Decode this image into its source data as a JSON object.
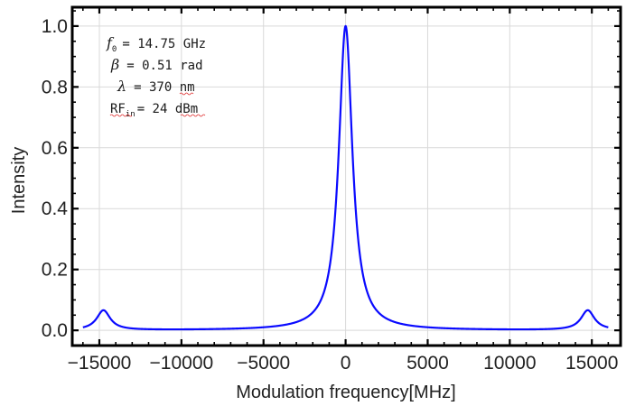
{
  "chart_data": {
    "type": "line",
    "title": "",
    "xlabel": "Modulation frequency[MHz]",
    "ylabel": "Intensity",
    "xlim": [
      -16650,
      16750
    ],
    "ylim": [
      -0.05,
      1.062
    ],
    "grid": true,
    "x_ticks": [
      -15000,
      -10000,
      -5000,
      0,
      5000,
      10000,
      15000
    ],
    "x_tick_labels": [
      "−15000",
      "−10000",
      "−5000",
      "0",
      "5000",
      "10000",
      "15000"
    ],
    "y_ticks": [
      0.0,
      0.2,
      0.4,
      0.6,
      0.8,
      1.0
    ],
    "y_tick_labels": [
      "0.0",
      "0.2",
      "0.4",
      "0.6",
      "0.8",
      "1.0"
    ],
    "line_color": "#0a0aff",
    "series": [
      {
        "name": "Intensity",
        "x": [
          -16000,
          -15500,
          -15000,
          -14750,
          -14500,
          -14000,
          -13000,
          -12000,
          -10000,
          -8000,
          -6000,
          -5000,
          -4000,
          -3000,
          -2000,
          -1500,
          -1000,
          -750,
          -500,
          -300,
          -150,
          0,
          150,
          300,
          500,
          750,
          1000,
          1500,
          2000,
          3000,
          4000,
          5000,
          6000,
          8000,
          10000,
          12000,
          13000,
          14000,
          14500,
          14750,
          15000,
          15500,
          16000
        ],
        "values": [
          0.011,
          0.025,
          0.055,
          0.067,
          0.055,
          0.022,
          0.007,
          0.004,
          0.003,
          0.004,
          0.007,
          0.01,
          0.016,
          0.027,
          0.059,
          0.1,
          0.2,
          0.308,
          0.5,
          0.735,
          0.917,
          1.0,
          0.917,
          0.735,
          0.5,
          0.308,
          0.2,
          0.1,
          0.059,
          0.027,
          0.016,
          0.01,
          0.007,
          0.004,
          0.003,
          0.004,
          0.007,
          0.022,
          0.055,
          0.067,
          0.055,
          0.025,
          0.011
        ]
      }
    ],
    "annotations": {
      "f0": {
        "symbol": "f",
        "sub": "0",
        "text": "= 14.75 GHz"
      },
      "beta": {
        "symbol": "β",
        "text": "= 0.51 rad"
      },
      "lambda": {
        "symbol": "λ",
        "text": "= 370 nm"
      },
      "rf": {
        "symbol": "RF",
        "sub": "in",
        "text": "= 24 dBm"
      }
    }
  }
}
